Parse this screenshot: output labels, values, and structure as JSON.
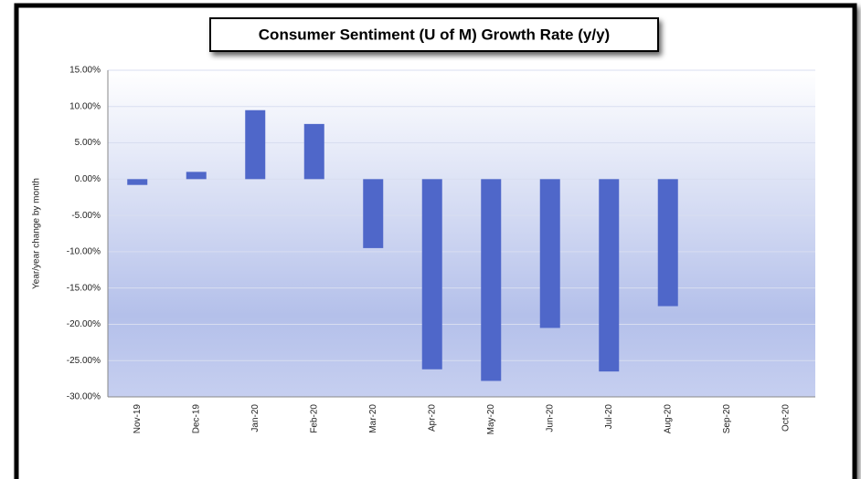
{
  "chart_data": {
    "type": "bar",
    "title": "Consumer Sentiment (U of M) Growth Rate (y/y)",
    "y_label": "Year/year change by month",
    "categories": [
      "Nov-19",
      "Dec-19",
      "Jan-20",
      "Feb-20",
      "Mar-20",
      "Apr-20",
      "May-20",
      "Jun-20",
      "Jul-20",
      "Aug-20",
      "Sep-20",
      "Oct-20"
    ],
    "values": [
      -0.8,
      1.0,
      9.5,
      7.6,
      -9.5,
      -26.2,
      -27.8,
      -20.5,
      -26.5,
      -17.5,
      null,
      null
    ],
    "color": "#4f67c9",
    "ylim": [
      -30,
      15
    ],
    "yticks": [
      {
        "value": -30,
        "label": "-30.00%"
      },
      {
        "value": -25,
        "label": "-25.00%"
      },
      {
        "value": -20,
        "label": "-20.00%"
      },
      {
        "value": -15,
        "label": "-15.00%"
      },
      {
        "value": -10,
        "label": "-10.00%"
      },
      {
        "value": -5,
        "label": "-5.00%"
      },
      {
        "value": 0,
        "label": "0.00%"
      },
      {
        "value": 5,
        "label": "5.00%"
      },
      {
        "value": 10,
        "label": "10.00%"
      },
      {
        "value": 15,
        "label": "15.00%"
      }
    ],
    "grid": true
  }
}
